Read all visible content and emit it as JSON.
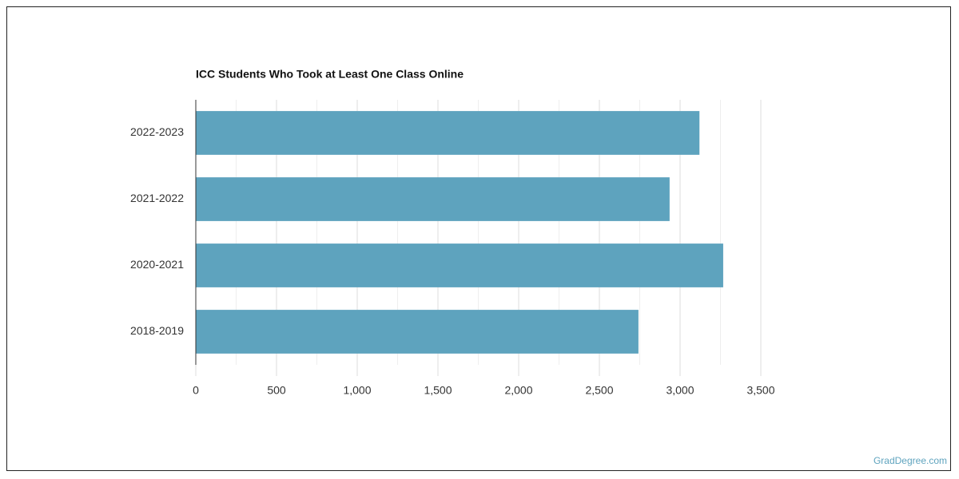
{
  "chart_data": {
    "type": "bar",
    "orientation": "horizontal",
    "title": "ICC Students Who Took at Least One Class Online",
    "categories": [
      "2022-2023",
      "2021-2022",
      "2020-2021",
      "2018-2019"
    ],
    "values": [
      3120,
      2935,
      3267,
      2742
    ],
    "color": "#5ea3be",
    "xlim": [
      0,
      3500
    ],
    "xticks": [
      0,
      500,
      {
        "value": 1000,
        "label": "1,000"
      },
      {
        "value": 1500,
        "label": "1,500"
      },
      {
        "value": 2000,
        "label": "2,000"
      },
      {
        "value": 2500,
        "label": "2,500"
      },
      {
        "value": 3000,
        "label": "3,000"
      },
      {
        "value": 3500,
        "label": "3,500"
      }
    ],
    "grid": true
  },
  "watermark": "GradDegree.com"
}
